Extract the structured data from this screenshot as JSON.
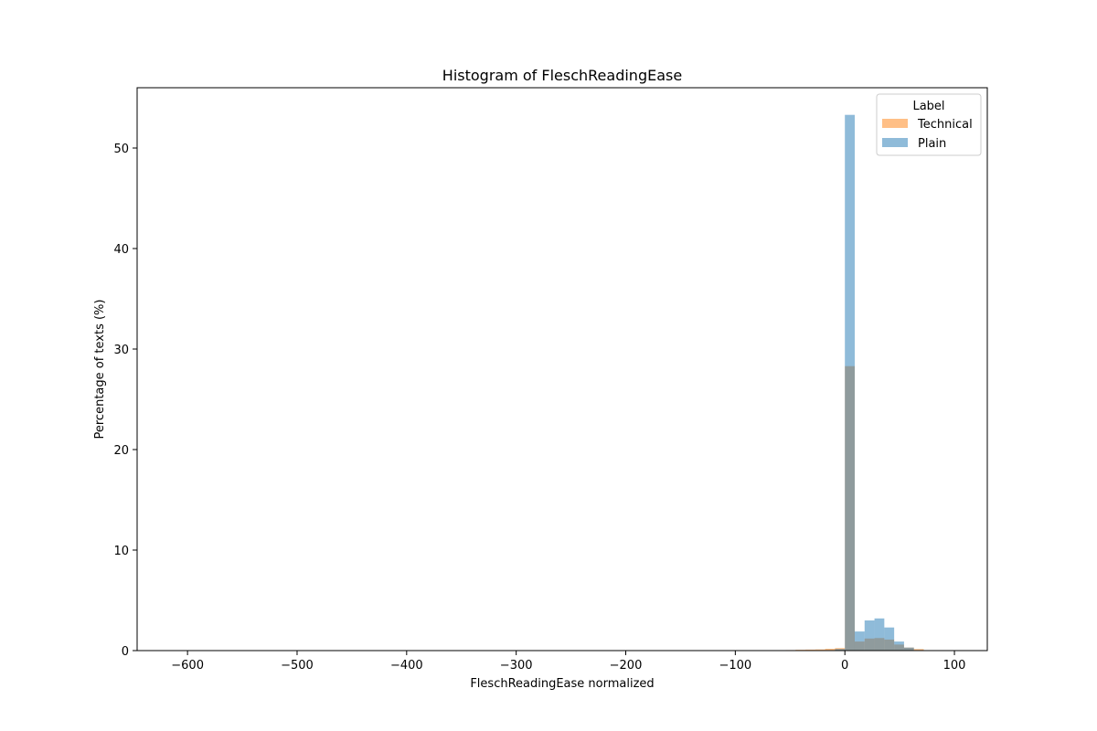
{
  "chart_data": {
    "type": "bar",
    "title": "Histogram of FleschReadingEase",
    "xlabel": "FleschReadingEase normalized",
    "ylabel": "Percentage of texts (%)",
    "xlim": [
      -646,
      130
    ],
    "ylim": [
      0,
      56
    ],
    "xticks": [
      -600,
      -500,
      -400,
      -300,
      -200,
      -100,
      0,
      100
    ],
    "yticks": [
      0,
      10,
      20,
      30,
      40,
      50
    ],
    "bin_width": 9,
    "grid": false,
    "legend": {
      "title": "Label",
      "placement": "top-right"
    },
    "series": [
      {
        "name": "Technical",
        "color": "#ff7f0e",
        "opacity": 0.5,
        "bins": [
          {
            "x": -54,
            "y": 0.05
          },
          {
            "x": -45,
            "y": 0.08
          },
          {
            "x": -36,
            "y": 0.1
          },
          {
            "x": -27,
            "y": 0.12
          },
          {
            "x": -18,
            "y": 0.18
          },
          {
            "x": -9,
            "y": 0.25
          },
          {
            "x": 0,
            "y": 28.3
          },
          {
            "x": 9,
            "y": 0.9
          },
          {
            "x": 18,
            "y": 1.2
          },
          {
            "x": 27,
            "y": 1.25
          },
          {
            "x": 36,
            "y": 1.1
          },
          {
            "x": 45,
            "y": 0.6
          },
          {
            "x": 54,
            "y": 0.3
          },
          {
            "x": 63,
            "y": 0.15
          }
        ]
      },
      {
        "name": "Plain",
        "color": "#1f77b4",
        "opacity": 0.5,
        "bins": [
          {
            "x": -18,
            "y": 0.05
          },
          {
            "x": -9,
            "y": 0.15
          },
          {
            "x": 0,
            "y": 53.3
          },
          {
            "x": 9,
            "y": 1.9
          },
          {
            "x": 18,
            "y": 3.0
          },
          {
            "x": 27,
            "y": 3.2
          },
          {
            "x": 36,
            "y": 2.3
          },
          {
            "x": 45,
            "y": 0.9
          },
          {
            "x": 54,
            "y": 0.3
          },
          {
            "x": 63,
            "y": 0.05
          }
        ]
      }
    ]
  }
}
